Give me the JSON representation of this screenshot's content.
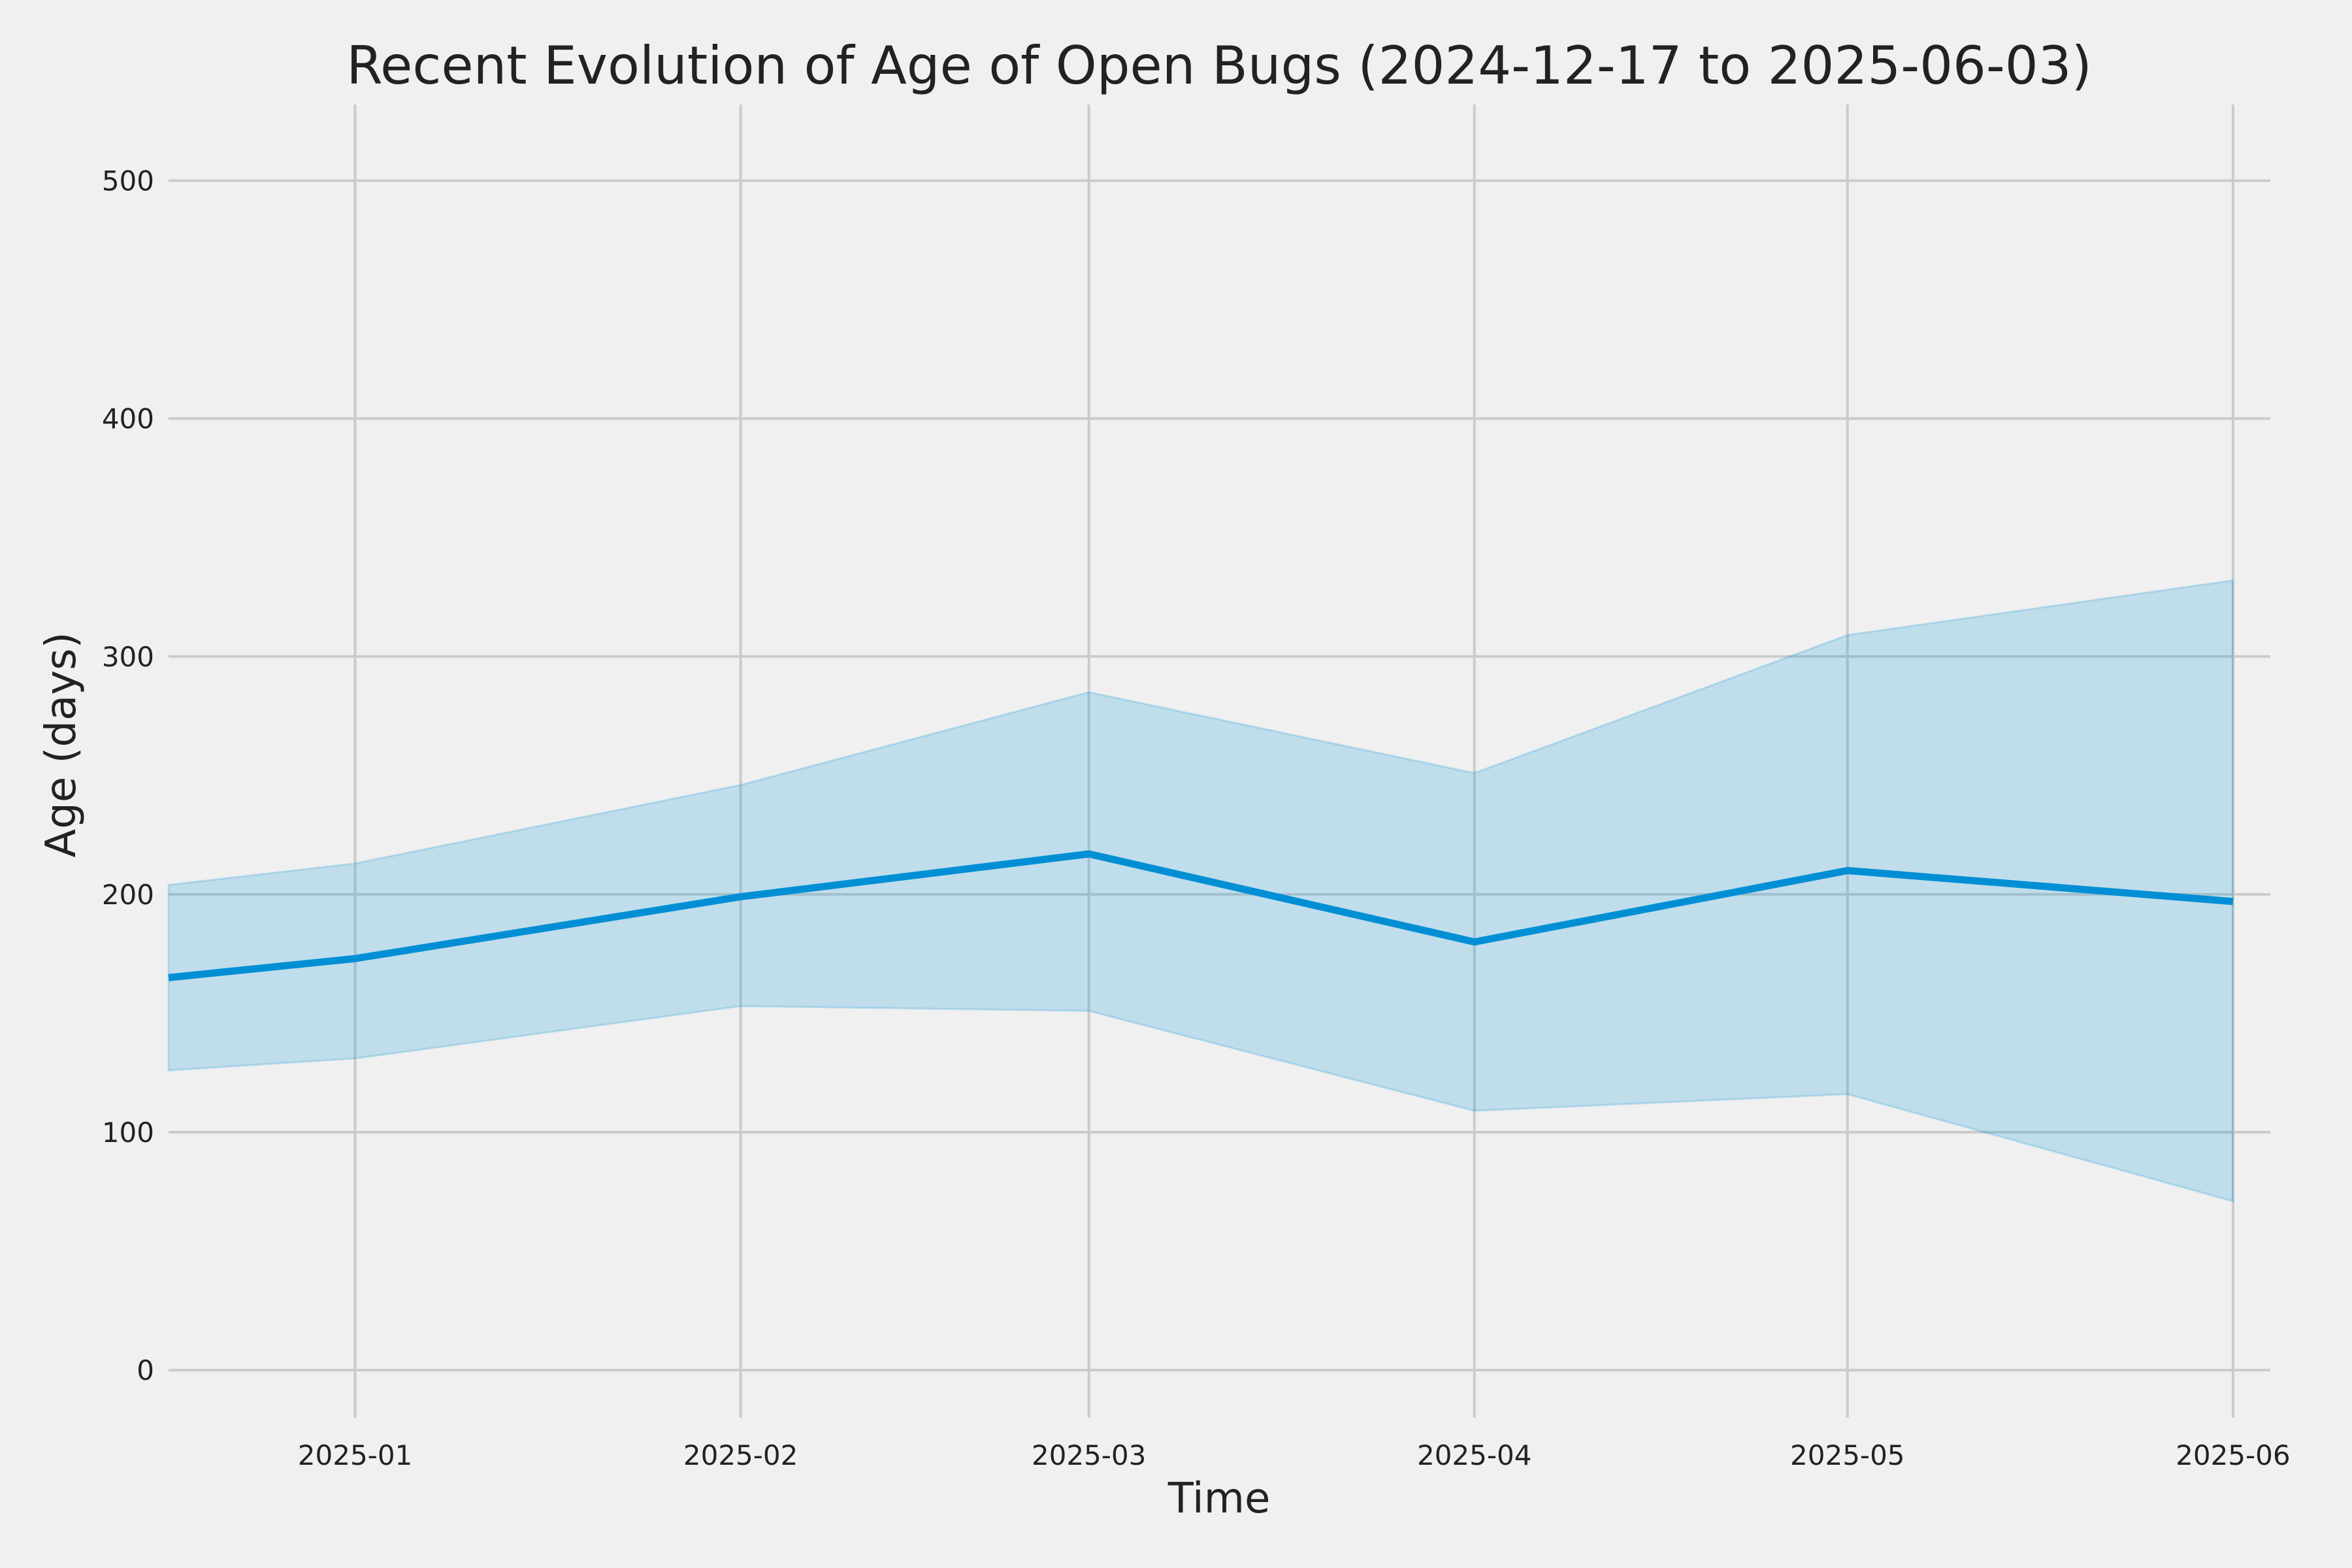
{
  "chart_data": {
    "type": "area",
    "title": "Recent Evolution of Age of Open Bugs (2024-12-17 to 2025-06-03)",
    "xlabel": "Time",
    "ylabel": "Age (days)",
    "xlim": [
      "2024-12-17",
      "2025-06-04"
    ],
    "ylim": [
      -20,
      532
    ],
    "x_ticks": [
      "2025-01",
      "2025-02",
      "2025-03",
      "2025-04",
      "2025-05",
      "2025-06"
    ],
    "y_ticks": [
      "0",
      "100",
      "200",
      "300",
      "400",
      "500"
    ],
    "grid": true,
    "series": [
      {
        "x": [
          "2024-12-17",
          "2025-01-01",
          "2025-02-01",
          "2025-03-01",
          "2025-04-01",
          "2025-05-01",
          "2025-06-01"
        ],
        "values": [
          165,
          173,
          199,
          217,
          180,
          210,
          197
        ],
        "lower": [
          126,
          131,
          153,
          151,
          109,
          116,
          71
        ],
        "upper": [
          204,
          213,
          246,
          285,
          251,
          309,
          332
        ]
      }
    ],
    "colors": {
      "line": "#008fd5",
      "band": "#008fd5",
      "background": "#f0f0f0",
      "grid": "#cbcbcb"
    }
  }
}
